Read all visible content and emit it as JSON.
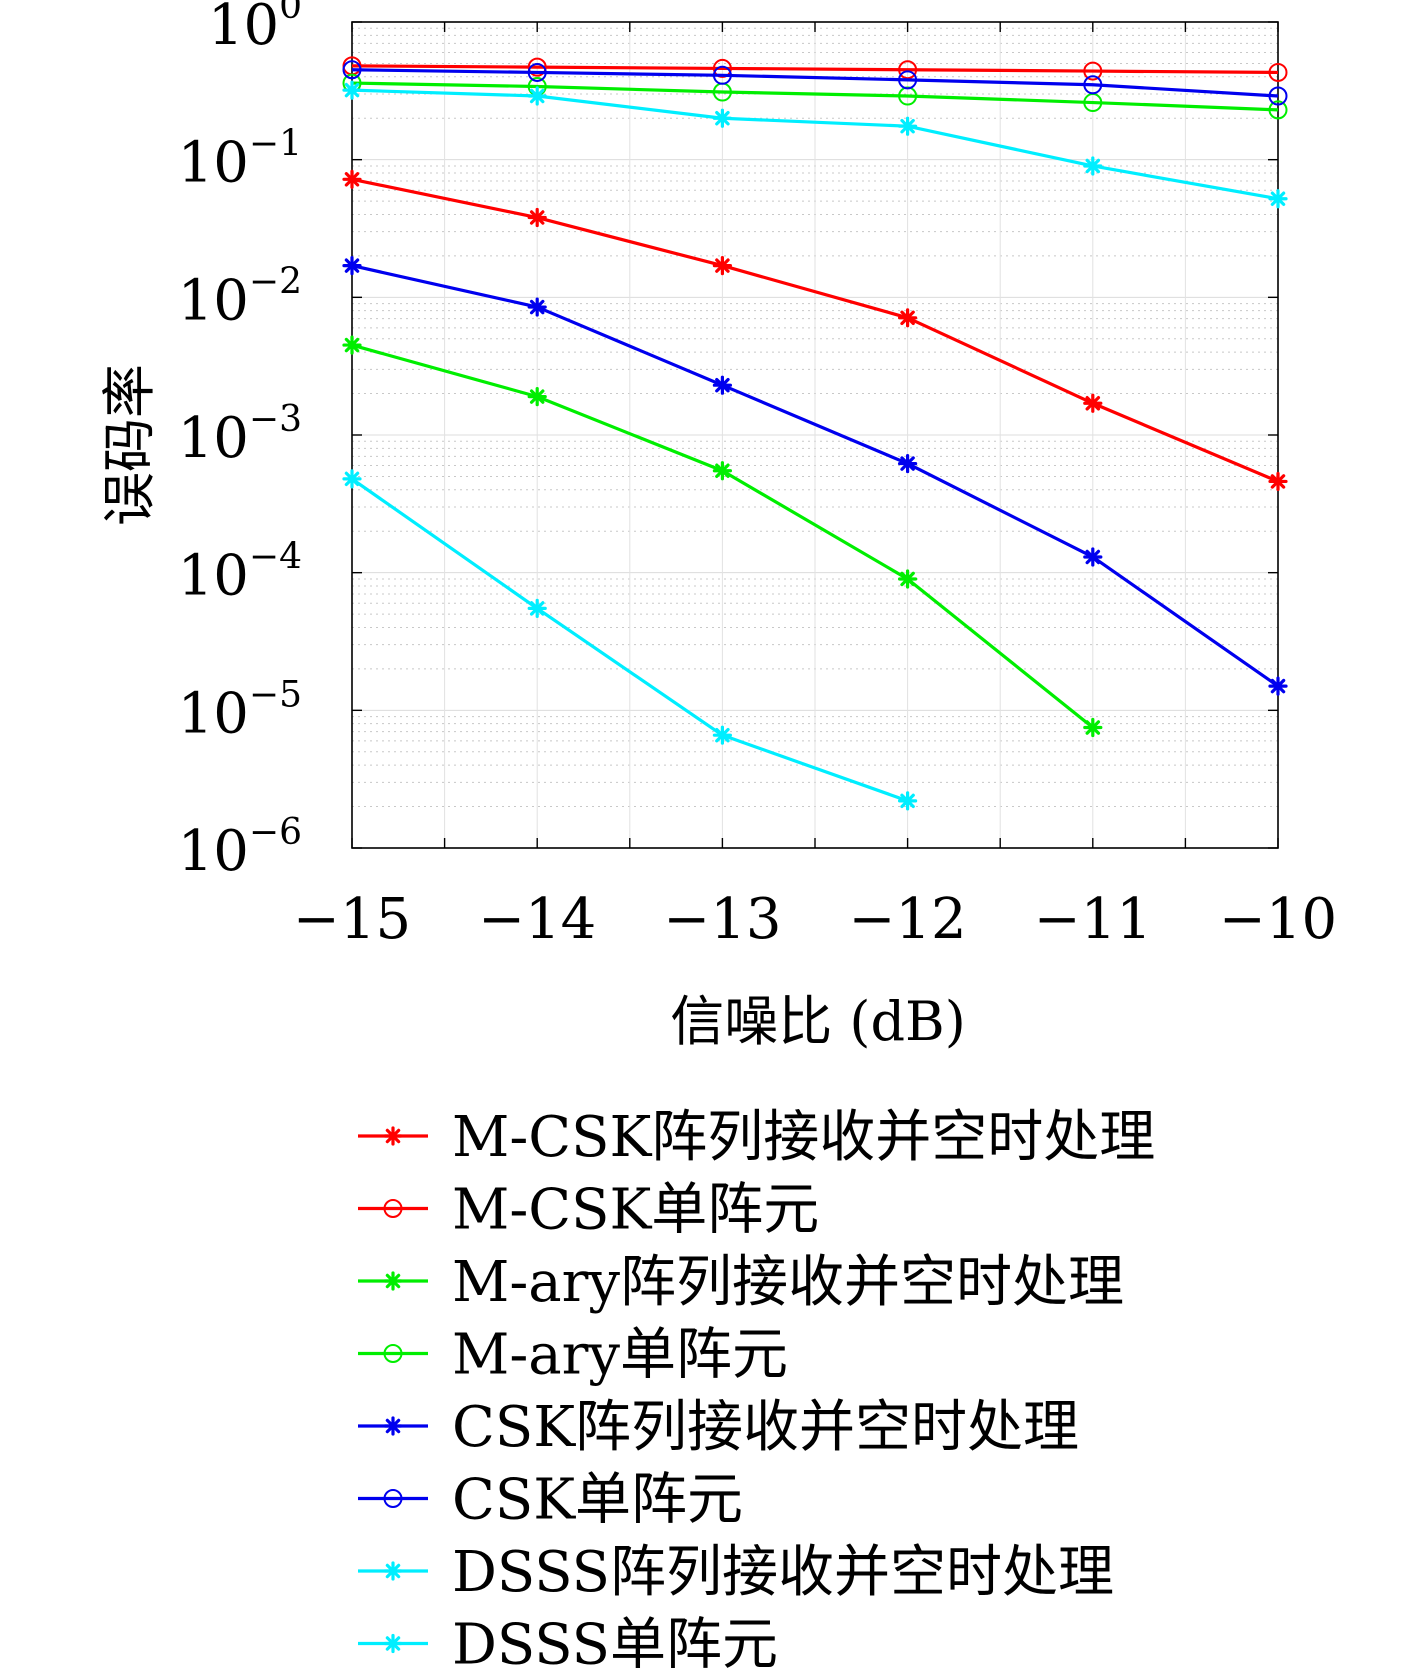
{
  "chart_data": {
    "type": "line",
    "xlabel": "信噪比 (dB)",
    "ylabel": "误码率",
    "x": [
      -15,
      -14,
      -13,
      -12,
      -11,
      -10
    ],
    "x_ticks": [
      "−15",
      "−14",
      "−13",
      "−12",
      "−11",
      "−10"
    ],
    "xlim": [
      -15,
      -10
    ],
    "ylim": [
      1e-06,
      1
    ],
    "yscale": "log",
    "y_ticks": [
      {
        "base": "10",
        "exp": "0",
        "value": 1
      },
      {
        "base": "10",
        "exp": "−1",
        "value": 0.1
      },
      {
        "base": "10",
        "exp": "−2",
        "value": 0.01
      },
      {
        "base": "10",
        "exp": "−3",
        "value": 0.001
      },
      {
        "base": "10",
        "exp": "−4",
        "value": 0.0001
      },
      {
        "base": "10",
        "exp": "−5",
        "value": 1e-05
      },
      {
        "base": "10",
        "exp": "−6",
        "value": 1e-06
      }
    ],
    "grid": true,
    "legend_position": "below",
    "series": [
      {
        "name": "M-CSK阵列接收并空时处理",
        "color": "#ff0000",
        "marker": "asterisk",
        "values": [
          0.072,
          0.038,
          0.017,
          0.0071,
          0.0017,
          0.00046
        ]
      },
      {
        "name": "M-CSK单阵元",
        "color": "#ff0000",
        "marker": "circle",
        "values": [
          0.48,
          0.47,
          0.46,
          0.45,
          0.44,
          0.43
        ]
      },
      {
        "name": "M-ary阵列接收并空时处理",
        "color": "#00ee00",
        "marker": "asterisk",
        "values": [
          0.0045,
          0.0019,
          0.00055,
          9e-05,
          7.5e-06,
          null
        ]
      },
      {
        "name": "M-ary单阵元",
        "color": "#00ee00",
        "marker": "circle",
        "values": [
          0.36,
          0.34,
          0.31,
          0.29,
          0.26,
          0.23
        ]
      },
      {
        "name": "CSK阵列接收并空时处理",
        "color": "#0000ee",
        "marker": "asterisk",
        "values": [
          0.017,
          0.0085,
          0.0023,
          0.00062,
          0.00013,
          1.5e-05
        ]
      },
      {
        "name": "CSK单阵元",
        "color": "#0000ee",
        "marker": "circle",
        "values": [
          0.45,
          0.43,
          0.41,
          0.38,
          0.35,
          0.29
        ]
      },
      {
        "name": "DSSS阵列接收并空时处理",
        "color": "#00eeff",
        "marker": "asterisk",
        "values": [
          0.00048,
          5.5e-05,
          6.6e-06,
          2.2e-06,
          null,
          null
        ]
      },
      {
        "name": "DSSS单阵元",
        "color": "#00eeff",
        "marker": "asterisk",
        "values": [
          0.32,
          0.29,
          0.2,
          0.175,
          0.09,
          0.052
        ]
      }
    ]
  }
}
